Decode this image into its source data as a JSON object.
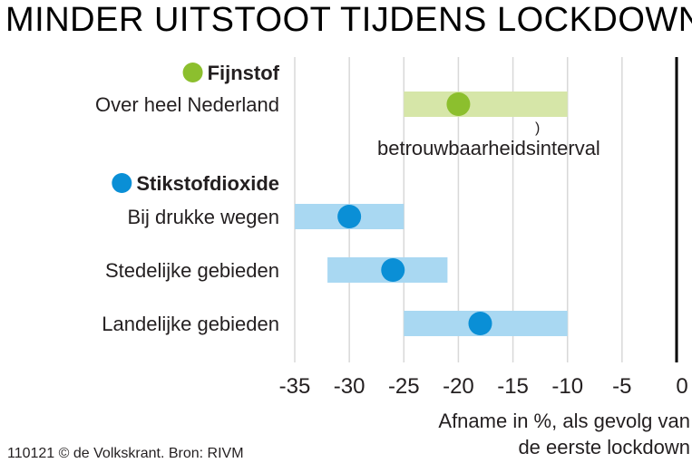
{
  "colors": {
    "fijnstof_bar": "#d6e6a8",
    "fijnstof_dot": "#8cbf2e",
    "stikstof_bar": "#a9d8f2",
    "stikstof_dot": "#0a8fd6",
    "grid": "#d8d8d8",
    "zero_line": "#000000",
    "text": "#231f20"
  },
  "chart_data": {
    "type": "dot-interval",
    "title": "MINDER UITSTOOT TIJDENS LOCKDOWN",
    "xlabel_lines": [
      "Afname in %, als gevolg van",
      "de eerste lockdown"
    ],
    "xlim": [
      -35,
      0
    ],
    "ticks": [
      -35,
      -30,
      -25,
      -20,
      -15,
      -10,
      -5,
      0
    ],
    "tick_labels": [
      "-35",
      "-30",
      "-25",
      "-20",
      "-15",
      "-10",
      "-5",
      "0"
    ],
    "annotation_bracket": ")",
    "annotation": "betrouwbaarheidsinterval",
    "groups": [
      {
        "name": "Fijnstof",
        "dot_color": "#8cbf2e",
        "bar_color": "#d6e6a8",
        "rows": [
          {
            "label": "Over heel Nederland",
            "value": -20,
            "low": -25,
            "high": -10
          }
        ]
      },
      {
        "name": "Stikstofdioxide",
        "dot_color": "#0a8fd6",
        "bar_color": "#a9d8f2",
        "rows": [
          {
            "label": "Bij drukke wegen",
            "value": -30,
            "low": -35,
            "high": -25
          },
          {
            "label": "Stedelijke gebieden",
            "value": -26,
            "low": -32,
            "high": -21
          },
          {
            "label": "Landelijke gebieden",
            "value": -18,
            "low": -25,
            "high": -10
          }
        ]
      }
    ]
  },
  "source": "110121 © de Volkskrant. Bron: RIVM"
}
